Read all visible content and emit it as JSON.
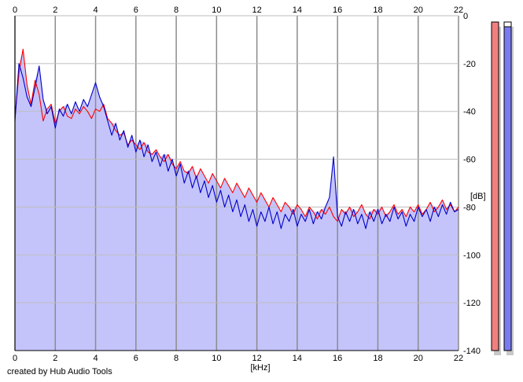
{
  "credit": "created by Hub Audio Tools",
  "chart_data": {
    "type": "line",
    "xlabel": "[kHz]",
    "ylabel": "[dB]",
    "xlim": [
      0,
      22
    ],
    "ylim": [
      -140,
      0
    ],
    "x_ticks": [
      0,
      2,
      4,
      6,
      8,
      10,
      12,
      14,
      16,
      18,
      20,
      22
    ],
    "y_ticks": [
      0,
      -20,
      -40,
      -60,
      -80,
      -100,
      -120,
      -140
    ],
    "grid": true,
    "fill_color": "#c4c4fb",
    "series": [
      {
        "color": "#ff0000",
        "points": [
          [
            0.0,
            -43
          ],
          [
            0.2,
            -24
          ],
          [
            0.4,
            -14
          ],
          [
            0.6,
            -29
          ],
          [
            0.8,
            -37
          ],
          [
            1.0,
            -27
          ],
          [
            1.2,
            -33
          ],
          [
            1.4,
            -44
          ],
          [
            1.6,
            -39
          ],
          [
            1.8,
            -37
          ],
          [
            2.0,
            -45
          ],
          [
            2.2,
            -40
          ],
          [
            2.4,
            -38
          ],
          [
            2.6,
            -42
          ],
          [
            2.8,
            -43
          ],
          [
            3.0,
            -39
          ],
          [
            3.2,
            -41
          ],
          [
            3.4,
            -38
          ],
          [
            3.6,
            -40
          ],
          [
            3.8,
            -43
          ],
          [
            4.0,
            -39
          ],
          [
            4.2,
            -40
          ],
          [
            4.4,
            -37
          ],
          [
            4.6,
            -43
          ],
          [
            4.8,
            -45
          ],
          [
            5.0,
            -48
          ],
          [
            5.2,
            -50
          ],
          [
            5.4,
            -49
          ],
          [
            5.6,
            -54
          ],
          [
            5.8,
            -52
          ],
          [
            6.0,
            -54
          ],
          [
            6.2,
            -56
          ],
          [
            6.4,
            -53
          ],
          [
            6.6,
            -57
          ],
          [
            6.8,
            -58
          ],
          [
            7.0,
            -56
          ],
          [
            7.2,
            -59
          ],
          [
            7.4,
            -61
          ],
          [
            7.6,
            -58
          ],
          [
            7.8,
            -62
          ],
          [
            8.0,
            -64
          ],
          [
            8.2,
            -61
          ],
          [
            8.4,
            -65
          ],
          [
            8.6,
            -66
          ],
          [
            8.8,
            -63
          ],
          [
            9.0,
            -68
          ],
          [
            9.2,
            -64
          ],
          [
            9.4,
            -67
          ],
          [
            9.6,
            -70
          ],
          [
            9.8,
            -66
          ],
          [
            10.0,
            -69
          ],
          [
            10.2,
            -72
          ],
          [
            10.4,
            -68
          ],
          [
            10.6,
            -71
          ],
          [
            10.8,
            -74
          ],
          [
            11.0,
            -70
          ],
          [
            11.2,
            -73
          ],
          [
            11.4,
            -76
          ],
          [
            11.6,
            -72
          ],
          [
            11.8,
            -75
          ],
          [
            12.0,
            -78
          ],
          [
            12.2,
            -74
          ],
          [
            12.4,
            -77
          ],
          [
            12.6,
            -80
          ],
          [
            12.8,
            -76
          ],
          [
            13.0,
            -79
          ],
          [
            13.2,
            -82
          ],
          [
            13.4,
            -78
          ],
          [
            13.6,
            -80
          ],
          [
            13.8,
            -83
          ],
          [
            14.0,
            -79
          ],
          [
            14.2,
            -81
          ],
          [
            14.4,
            -84
          ],
          [
            14.6,
            -80
          ],
          [
            14.8,
            -82
          ],
          [
            15.0,
            -85
          ],
          [
            15.2,
            -81
          ],
          [
            15.4,
            -83
          ],
          [
            15.6,
            -80
          ],
          [
            15.8,
            -84
          ],
          [
            16.0,
            -86
          ],
          [
            16.2,
            -81
          ],
          [
            16.4,
            -83
          ],
          [
            16.6,
            -80
          ],
          [
            16.8,
            -84
          ],
          [
            17.0,
            -82
          ],
          [
            17.2,
            -79
          ],
          [
            17.4,
            -83
          ],
          [
            17.6,
            -85
          ],
          [
            17.8,
            -81
          ],
          [
            18.0,
            -83
          ],
          [
            18.2,
            -80
          ],
          [
            18.4,
            -84
          ],
          [
            18.6,
            -82
          ],
          [
            18.8,
            -79
          ],
          [
            19.0,
            -83
          ],
          [
            19.2,
            -81
          ],
          [
            19.4,
            -84
          ],
          [
            19.6,
            -80
          ],
          [
            19.8,
            -82
          ],
          [
            20.0,
            -79
          ],
          [
            20.2,
            -83
          ],
          [
            20.4,
            -81
          ],
          [
            20.6,
            -78
          ],
          [
            20.8,
            -82
          ],
          [
            21.0,
            -80
          ],
          [
            21.2,
            -77
          ],
          [
            21.4,
            -81
          ],
          [
            21.6,
            -79
          ],
          [
            21.8,
            -82
          ],
          [
            22.0,
            -80
          ]
        ]
      },
      {
        "color": "#0000c8",
        "points": [
          [
            0.0,
            -44
          ],
          [
            0.2,
            -20
          ],
          [
            0.4,
            -26
          ],
          [
            0.6,
            -34
          ],
          [
            0.8,
            -38
          ],
          [
            1.0,
            -30
          ],
          [
            1.2,
            -21
          ],
          [
            1.4,
            -35
          ],
          [
            1.6,
            -41
          ],
          [
            1.8,
            -38
          ],
          [
            2.0,
            -47
          ],
          [
            2.2,
            -39
          ],
          [
            2.4,
            -42
          ],
          [
            2.6,
            -37
          ],
          [
            2.8,
            -41
          ],
          [
            3.0,
            -36
          ],
          [
            3.2,
            -40
          ],
          [
            3.4,
            -35
          ],
          [
            3.6,
            -38
          ],
          [
            3.8,
            -33
          ],
          [
            4.0,
            -28
          ],
          [
            4.2,
            -34
          ],
          [
            4.4,
            -38
          ],
          [
            4.6,
            -44
          ],
          [
            4.8,
            -50
          ],
          [
            5.0,
            -45
          ],
          [
            5.2,
            -52
          ],
          [
            5.4,
            -48
          ],
          [
            5.6,
            -55
          ],
          [
            5.8,
            -50
          ],
          [
            6.0,
            -57
          ],
          [
            6.2,
            -52
          ],
          [
            6.4,
            -59
          ],
          [
            6.6,
            -54
          ],
          [
            6.8,
            -61
          ],
          [
            7.0,
            -57
          ],
          [
            7.2,
            -63
          ],
          [
            7.4,
            -58
          ],
          [
            7.6,
            -65
          ],
          [
            7.8,
            -60
          ],
          [
            8.0,
            -67
          ],
          [
            8.2,
            -62
          ],
          [
            8.4,
            -70
          ],
          [
            8.6,
            -65
          ],
          [
            8.8,
            -72
          ],
          [
            9.0,
            -67
          ],
          [
            9.2,
            -74
          ],
          [
            9.4,
            -69
          ],
          [
            9.6,
            -76
          ],
          [
            9.8,
            -71
          ],
          [
            10.0,
            -78
          ],
          [
            10.2,
            -73
          ],
          [
            10.4,
            -80
          ],
          [
            10.6,
            -75
          ],
          [
            10.8,
            -82
          ],
          [
            11.0,
            -77
          ],
          [
            11.2,
            -84
          ],
          [
            11.4,
            -79
          ],
          [
            11.6,
            -86
          ],
          [
            11.8,
            -81
          ],
          [
            12.0,
            -88
          ],
          [
            12.2,
            -82
          ],
          [
            12.4,
            -86
          ],
          [
            12.6,
            -80
          ],
          [
            12.8,
            -87
          ],
          [
            13.0,
            -82
          ],
          [
            13.2,
            -89
          ],
          [
            13.4,
            -83
          ],
          [
            13.6,
            -86
          ],
          [
            13.8,
            -81
          ],
          [
            14.0,
            -88
          ],
          [
            14.2,
            -83
          ],
          [
            14.4,
            -86
          ],
          [
            14.6,
            -81
          ],
          [
            14.8,
            -87
          ],
          [
            15.0,
            -82
          ],
          [
            15.2,
            -85
          ],
          [
            15.4,
            -80
          ],
          [
            15.6,
            -76
          ],
          [
            15.8,
            -59
          ],
          [
            16.0,
            -84
          ],
          [
            16.2,
            -88
          ],
          [
            16.4,
            -82
          ],
          [
            16.6,
            -86
          ],
          [
            16.8,
            -81
          ],
          [
            17.0,
            -87
          ],
          [
            17.2,
            -83
          ],
          [
            17.4,
            -89
          ],
          [
            17.6,
            -82
          ],
          [
            17.8,
            -86
          ],
          [
            18.0,
            -81
          ],
          [
            18.2,
            -87
          ],
          [
            18.4,
            -83
          ],
          [
            18.6,
            -86
          ],
          [
            18.8,
            -80
          ],
          [
            19.0,
            -85
          ],
          [
            19.2,
            -82
          ],
          [
            19.4,
            -88
          ],
          [
            19.6,
            -83
          ],
          [
            19.8,
            -86
          ],
          [
            20.0,
            -80
          ],
          [
            20.2,
            -84
          ],
          [
            20.4,
            -81
          ],
          [
            20.6,
            -86
          ],
          [
            20.8,
            -80
          ],
          [
            21.0,
            -84
          ],
          [
            21.2,
            -79
          ],
          [
            21.4,
            -83
          ],
          [
            21.6,
            -78
          ],
          [
            21.8,
            -82
          ],
          [
            22.0,
            -81
          ]
        ]
      }
    ]
  },
  "meters": [
    {
      "color": "#f08080",
      "level": 1.0
    },
    {
      "color": "#7b7bf0",
      "level": 1.0
    }
  ]
}
